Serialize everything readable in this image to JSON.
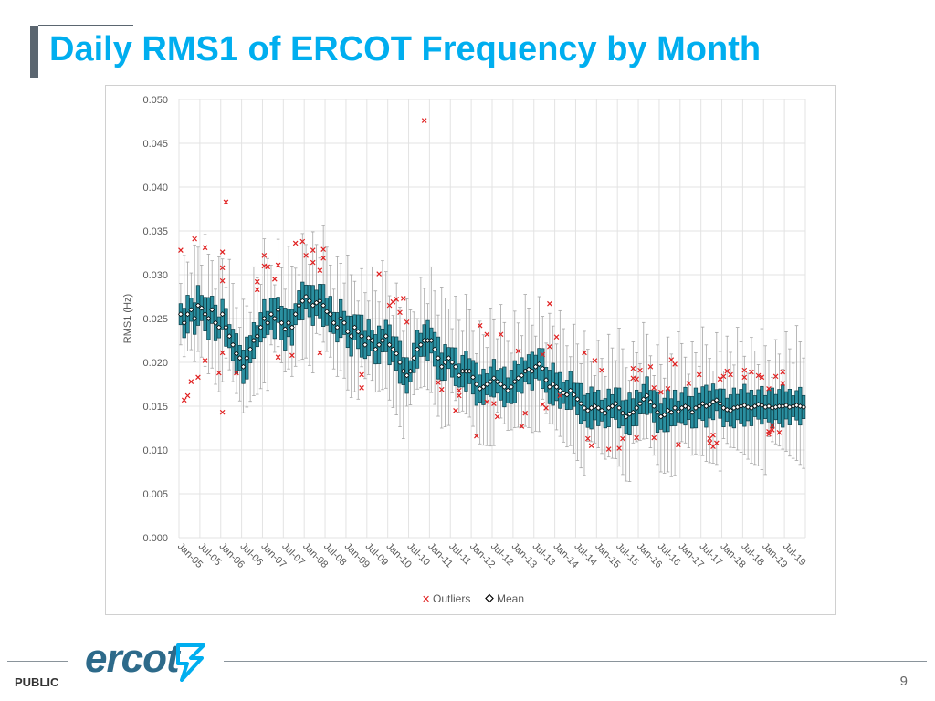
{
  "slide": {
    "title": "Daily RMS1 of ERCOT Frequency by Month",
    "footer_label": "PUBLIC",
    "page_number": "9",
    "logo_text": "ercot"
  },
  "colors": {
    "title": "#00aeef",
    "box_fill": "#2a8fa0",
    "box_edge": "#0d3f48",
    "whisker": "#a6a6a6",
    "outlier": "#e02020",
    "mean_marker": "#000000",
    "logo": "#2d6a8a",
    "logo_mark": "#00aeef"
  },
  "chart_data": {
    "type": "box",
    "ylabel": "RMS1 (Hz)",
    "ylim": [
      0,
      0.05
    ],
    "yticks": [
      0,
      0.005,
      0.01,
      0.015,
      0.02,
      0.025,
      0.03,
      0.035,
      0.04,
      0.045,
      0.05
    ],
    "ytick_labels": [
      "0.000",
      "0.005",
      "0.010",
      "0.015",
      "0.020",
      "0.025",
      "0.030",
      "0.035",
      "0.040",
      "0.045",
      "0.050"
    ],
    "x_labels": [
      "Jan-05",
      "Jul-05",
      "Jan-06",
      "Jul-06",
      "Jan-07",
      "Jul-07",
      "Jan-08",
      "Jul-08",
      "Jan-09",
      "Jul-09",
      "Jan-10",
      "Jul-10",
      "Jan-11",
      "Jul-11",
      "Jan-12",
      "Jul-12",
      "Jan-13",
      "Jul-13",
      "Jan-14",
      "Jul-14",
      "Jan-15",
      "Jul-15",
      "Jan-16",
      "Jul-16",
      "Jan-17",
      "Jul-17",
      "Jan-18",
      "Jul-18",
      "Jan-19",
      "Jul-19"
    ],
    "legend": [
      "Outliers",
      "Mean"
    ],
    "legend_position": "bottom",
    "grid": true,
    "mean_by_month": [
      0.0255,
      0.0245,
      0.0255,
      0.026,
      0.025,
      0.0265,
      0.0262,
      0.0255,
      0.025,
      0.026,
      0.0245,
      0.024,
      0.0255,
      0.024,
      0.023,
      0.022,
      0.021,
      0.0205,
      0.0195,
      0.0205,
      0.0215,
      0.0225,
      0.023,
      0.024,
      0.025,
      0.0245,
      0.0255,
      0.025,
      0.026,
      0.0245,
      0.0238,
      0.0245,
      0.024,
      0.0255,
      0.0265,
      0.027,
      0.0275,
      0.027,
      0.0265,
      0.0268,
      0.027,
      0.0265,
      0.0258,
      0.0255,
      0.0245,
      0.024,
      0.025,
      0.0245,
      0.0235,
      0.023,
      0.024,
      0.0235,
      0.023,
      0.022,
      0.0228,
      0.0225,
      0.0215,
      0.022,
      0.0225,
      0.023,
      0.022,
      0.0215,
      0.021,
      0.02,
      0.019,
      0.0185,
      0.019,
      0.0205,
      0.0215,
      0.022,
      0.0225,
      0.0225,
      0.0225,
      0.0215,
      0.0205,
      0.0195,
      0.02,
      0.0205,
      0.02,
      0.0195,
      0.0185,
      0.019,
      0.019,
      0.019,
      0.0183,
      0.0175,
      0.017,
      0.0172,
      0.0175,
      0.0178,
      0.0182,
      0.0178,
      0.0175,
      0.0172,
      0.0168,
      0.0172,
      0.0178,
      0.0182,
      0.0185,
      0.019,
      0.0192,
      0.019,
      0.0195,
      0.0198,
      0.0193,
      0.018,
      0.0172,
      0.0175,
      0.0172,
      0.0168,
      0.0165,
      0.0163,
      0.0168,
      0.0163,
      0.0158,
      0.0153,
      0.0148,
      0.0145,
      0.0148,
      0.015,
      0.0148,
      0.0145,
      0.0142,
      0.0148,
      0.015,
      0.0153,
      0.0148,
      0.0142,
      0.0138,
      0.0141,
      0.0143,
      0.0148,
      0.0153,
      0.0158,
      0.0162,
      0.0155,
      0.015,
      0.0143,
      0.0138,
      0.014,
      0.0145,
      0.0143,
      0.0148,
      0.0144,
      0.0148,
      0.015,
      0.0148,
      0.0143,
      0.0148,
      0.015,
      0.0153,
      0.015,
      0.0152,
      0.0155,
      0.0157,
      0.0153,
      0.0148,
      0.0146,
      0.0145,
      0.0148,
      0.0149,
      0.015,
      0.0151,
      0.0149,
      0.0148,
      0.015,
      0.0152,
      0.0151,
      0.0149,
      0.015,
      0.0148,
      0.0149,
      0.015,
      0.015,
      0.0151,
      0.0149,
      0.015,
      0.0151,
      0.015,
      0.0149
    ],
    "outliers": [
      [
        0,
        0.0328
      ],
      [
        1,
        0.0157
      ],
      [
        2,
        0.0162
      ],
      [
        3,
        0.0178
      ],
      [
        4,
        0.0341
      ],
      [
        5,
        0.0183
      ],
      [
        7,
        0.0331
      ],
      [
        7,
        0.0202
      ],
      [
        11,
        0.0188
      ],
      [
        12,
        0.0143
      ],
      [
        12,
        0.0326
      ],
      [
        12,
        0.0308
      ],
      [
        12,
        0.0293
      ],
      [
        12,
        0.0211
      ],
      [
        13,
        0.0383
      ],
      [
        16,
        0.0188
      ],
      [
        22,
        0.0292
      ],
      [
        22,
        0.0283
      ],
      [
        24,
        0.0322
      ],
      [
        24,
        0.031
      ],
      [
        25,
        0.0309
      ],
      [
        27,
        0.0295
      ],
      [
        28,
        0.0206
      ],
      [
        28,
        0.0311
      ],
      [
        32,
        0.0208
      ],
      [
        33,
        0.0336
      ],
      [
        35,
        0.0338
      ],
      [
        36,
        0.0322
      ],
      [
        38,
        0.0314
      ],
      [
        38,
        0.0328
      ],
      [
        40,
        0.0305
      ],
      [
        40,
        0.0211
      ],
      [
        41,
        0.0329
      ],
      [
        41,
        0.0319
      ],
      [
        52,
        0.0186
      ],
      [
        52,
        0.0171
      ],
      [
        57,
        0.0301
      ],
      [
        60,
        0.0265
      ],
      [
        61,
        0.0269
      ],
      [
        62,
        0.0272
      ],
      [
        63,
        0.0257
      ],
      [
        64,
        0.0273
      ],
      [
        65,
        0.0246
      ],
      [
        70,
        0.0476
      ],
      [
        74,
        0.0177
      ],
      [
        75,
        0.0169
      ],
      [
        79,
        0.0145
      ],
      [
        80,
        0.0168
      ],
      [
        80,
        0.0162
      ],
      [
        85,
        0.0116
      ],
      [
        86,
        0.0242
      ],
      [
        88,
        0.0232
      ],
      [
        88,
        0.0155
      ],
      [
        90,
        0.0153
      ],
      [
        91,
        0.0138
      ],
      [
        92,
        0.0232
      ],
      [
        97,
        0.0213
      ],
      [
        98,
        0.0127
      ],
      [
        99,
        0.0142
      ],
      [
        104,
        0.0209
      ],
      [
        104,
        0.0152
      ],
      [
        105,
        0.0148
      ],
      [
        106,
        0.0267
      ],
      [
        106,
        0.0218
      ],
      [
        108,
        0.0229
      ],
      [
        109,
        0.0162
      ],
      [
        116,
        0.0211
      ],
      [
        117,
        0.0113
      ],
      [
        118,
        0.0105
      ],
      [
        119,
        0.0202
      ],
      [
        121,
        0.0191
      ],
      [
        123,
        0.0101
      ],
      [
        126,
        0.0102
      ],
      [
        127,
        0.0113
      ],
      [
        130,
        0.0193
      ],
      [
        130,
        0.0182
      ],
      [
        131,
        0.0114
      ],
      [
        131,
        0.0181
      ],
      [
        132,
        0.0191
      ],
      [
        135,
        0.0195
      ],
      [
        136,
        0.0171
      ],
      [
        136,
        0.0114
      ],
      [
        138,
        0.0166
      ],
      [
        140,
        0.017
      ],
      [
        141,
        0.0203
      ],
      [
        142,
        0.0198
      ],
      [
        143,
        0.0106
      ],
      [
        146,
        0.0176
      ],
      [
        149,
        0.0186
      ],
      [
        152,
        0.0113
      ],
      [
        152,
        0.0108
      ],
      [
        153,
        0.0117
      ],
      [
        153,
        0.0104
      ],
      [
        154,
        0.0108
      ],
      [
        155,
        0.0181
      ],
      [
        156,
        0.0184
      ],
      [
        157,
        0.019
      ],
      [
        158,
        0.0186
      ],
      [
        162,
        0.0183
      ],
      [
        162,
        0.0191
      ],
      [
        164,
        0.0189
      ],
      [
        166,
        0.0185
      ],
      [
        167,
        0.0183
      ],
      [
        169,
        0.017
      ],
      [
        169,
        0.0121
      ],
      [
        169,
        0.0118
      ],
      [
        170,
        0.0128
      ],
      [
        170,
        0.0123
      ],
      [
        171,
        0.0184
      ],
      [
        172,
        0.012
      ],
      [
        173,
        0.0189
      ],
      [
        173,
        0.0176
      ]
    ]
  }
}
